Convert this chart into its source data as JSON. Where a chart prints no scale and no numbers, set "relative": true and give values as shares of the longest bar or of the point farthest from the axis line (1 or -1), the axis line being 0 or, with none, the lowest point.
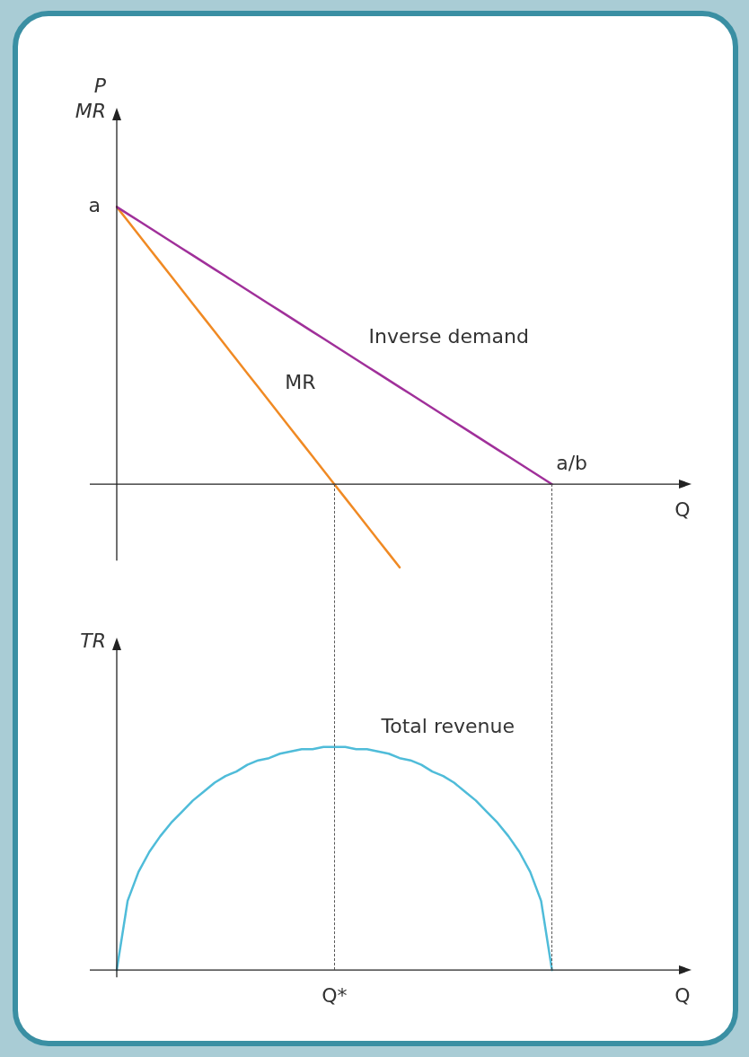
{
  "chart_data": [
    {
      "type": "line",
      "relative": true,
      "ylabel": "P\nMR",
      "xlabel": "Q",
      "categories": [
        null,
        null,
        null,
        null,
        null,
        null,
        null,
        null,
        null,
        null,
        null,
        null,
        null,
        null,
        null,
        null,
        null,
        null,
        null,
        null,
        null,
        null,
        null,
        null,
        null,
        null,
        null,
        null,
        null,
        null,
        null,
        null,
        null,
        null,
        null,
        null,
        null,
        null,
        null,
        null,
        null,
        null,
        null,
        null,
        null,
        null,
        null,
        null,
        null,
        null,
        null,
        null,
        null
      ],
      "series": [
        {
          "name": "Inverse demand",
          "color": "#a0309a",
          "values": [
            1,
            0.975,
            0.95,
            0.925,
            0.9,
            0.875,
            0.85,
            0.825,
            0.8,
            0.775,
            0.75,
            0.725,
            0.7,
            0.675,
            0.65,
            0.625,
            0.6,
            0.575,
            0.55,
            0.525,
            0.5,
            0.475,
            0.45,
            0.425,
            0.4,
            0.375,
            0.35,
            0.325,
            0.3,
            0.275,
            0.25,
            0.225,
            0.2,
            0.175,
            0.15,
            0.125,
            0.1,
            0.075,
            0.05,
            0.025,
            0,
            null,
            null,
            null,
            null,
            null,
            null,
            null,
            null,
            null,
            null,
            null,
            null
          ]
        },
        {
          "name": "MR",
          "color": "#f08a24",
          "values": [
            1,
            0.95,
            0.9,
            0.85,
            0.8,
            0.75,
            0.7,
            0.65,
            0.6,
            0.55,
            0.5,
            0.45,
            0.4,
            0.35,
            0.3,
            0.25,
            0.2,
            0.15,
            0.1,
            0.05,
            0,
            -0.05,
            -0.1,
            -0.15,
            -0.2,
            -0.25,
            -0.3,
            null,
            null,
            null,
            null,
            null,
            null,
            null,
            null,
            null,
            null,
            null,
            null,
            null,
            null,
            null,
            null,
            null,
            null,
            null,
            null,
            null,
            null,
            null,
            null,
            null,
            null
          ]
        }
      ],
      "annotations": [
        "a",
        "a/b"
      ]
    },
    {
      "type": "line",
      "relative": true,
      "ylabel": "TR",
      "xlabel": "Q",
      "categories": [
        null,
        null,
        null,
        null,
        null,
        null,
        null,
        null,
        null,
        null,
        null,
        null,
        null,
        null,
        null,
        null,
        null,
        null,
        null,
        null,
        null,
        null,
        null,
        null,
        null,
        null,
        null,
        null,
        null,
        null,
        null,
        null,
        null,
        null,
        null,
        null,
        null,
        null,
        null,
        null,
        null,
        null,
        null,
        null,
        null,
        null,
        null,
        null,
        null,
        null,
        null,
        null,
        null
      ],
      "series": [
        {
          "name": "Total revenue",
          "color": "#4fbcd9",
          "values": [
            0,
            0.31,
            0.44,
            0.53,
            0.6,
            0.66,
            0.71,
            0.76,
            0.8,
            0.84,
            0.87,
            0.89,
            0.92,
            0.94,
            0.95,
            0.97,
            0.98,
            0.99,
            0.99,
            1,
            1,
            1,
            0.99,
            0.99,
            0.98,
            0.97,
            0.95,
            0.94,
            0.92,
            0.89,
            0.87,
            0.84,
            0.8,
            0.76,
            0.71,
            0.66,
            0.6,
            0.53,
            0.44,
            0.31,
            0,
            null,
            null,
            null,
            null,
            null,
            null,
            null,
            null,
            null,
            null,
            null,
            null
          ]
        }
      ],
      "annotations": [
        "Q*"
      ]
    }
  ]
}
